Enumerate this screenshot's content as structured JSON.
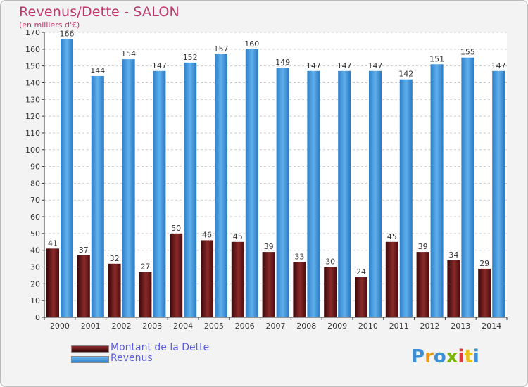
{
  "header": {
    "title": "Revenus/Dette - SALON",
    "subtitle": "(en milliers d'€)"
  },
  "colors": {
    "debt_bar": "#6e1d1d",
    "revenue_bar": "#3d8fd8",
    "title": "#c0376a",
    "legend_text": "#5a5ce0",
    "grid": "#cccccc"
  },
  "chart_data": {
    "type": "bar",
    "title": "Revenus/Dette - SALON",
    "subtitle": "(en milliers d'€)",
    "categories": [
      "2000",
      "2001",
      "2002",
      "2003",
      "2004",
      "2005",
      "2006",
      "2007",
      "2008",
      "2009",
      "2010",
      "2011",
      "2012",
      "2013",
      "2014"
    ],
    "series": [
      {
        "name": "Montant de la Dette",
        "values": [
          41,
          37,
          32,
          27,
          50,
          46,
          45,
          39,
          33,
          30,
          24,
          45,
          39,
          34,
          29
        ]
      },
      {
        "name": "Revenus",
        "values": [
          166,
          144,
          154,
          147,
          152,
          157,
          160,
          149,
          147,
          147,
          147,
          142,
          151,
          155,
          147
        ]
      }
    ],
    "ylim": [
      0,
      170
    ],
    "yticks": [
      0,
      10,
      20,
      30,
      40,
      50,
      60,
      70,
      80,
      90,
      100,
      110,
      120,
      130,
      140,
      150,
      160,
      170
    ],
    "grid": true,
    "legend_position": "bottom-left",
    "xlabel": "",
    "ylabel": ""
  },
  "legend": {
    "items": [
      {
        "label": "Montant de la Dette"
      },
      {
        "label": "Revenus"
      }
    ]
  },
  "branding": {
    "logo_text": "Proxiti",
    "logo_icon": "proxiti-logo"
  }
}
